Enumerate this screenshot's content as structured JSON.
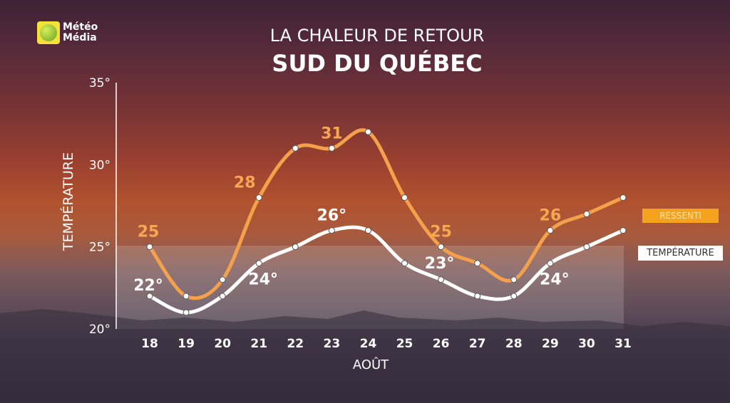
{
  "logo": {
    "line1": "Météo",
    "line2": "Média"
  },
  "header": {
    "title": "LA CHALEUR DE RETOUR",
    "subtitle": "SUD DU QUÉBEC"
  },
  "legend": {
    "ressenti": "RESSENTI",
    "temperature": "TEMPÉRATURE"
  },
  "colors": {
    "ressenti": "#f5a04a",
    "temperature": "#ffffff",
    "ressenti_label": "#f7a654"
  },
  "chart_data": {
    "type": "line",
    "title": "SUD DU QUÉBEC",
    "xlabel": "AOÛT",
    "ylabel": "TEMPÉRATURE",
    "x": [
      "18",
      "19",
      "20",
      "21",
      "22",
      "23",
      "24",
      "25",
      "26",
      "27",
      "28",
      "29",
      "30",
      "31"
    ],
    "ylim": [
      20,
      35
    ],
    "yticks": [
      "20°",
      "25°",
      "30°",
      "35°"
    ],
    "grid": false,
    "legend": "right",
    "series": [
      {
        "name": "RESSENTI",
        "values": [
          25,
          22,
          23,
          28,
          31,
          31,
          32,
          28,
          25,
          24,
          23,
          26,
          27,
          28
        ],
        "labels": [
          {
            "x": "18",
            "text": "25"
          },
          {
            "x": "21",
            "text": "28"
          },
          {
            "x": "23",
            "text": "31"
          },
          {
            "x": "26",
            "text": "25"
          },
          {
            "x": "29",
            "text": "26"
          }
        ]
      },
      {
        "name": "TEMPÉRATURE",
        "values": [
          22,
          21,
          22,
          24,
          25,
          26,
          26,
          24,
          23,
          22,
          22,
          24,
          25,
          26
        ],
        "labels": [
          {
            "x": "18",
            "text": "22°"
          },
          {
            "x": "21",
            "text": "24°"
          },
          {
            "x": "23",
            "text": "26°"
          },
          {
            "x": "26",
            "text": "23°"
          },
          {
            "x": "29",
            "text": "24°"
          }
        ]
      }
    ]
  }
}
